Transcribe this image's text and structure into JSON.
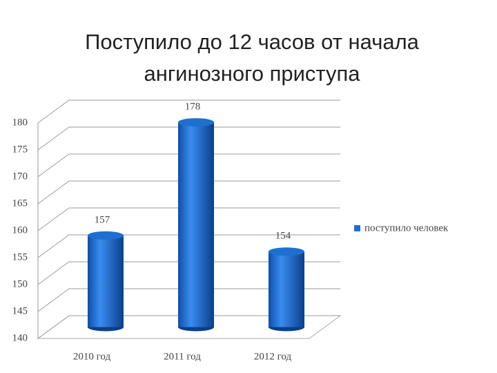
{
  "chart_data": {
    "type": "bar",
    "title": "Поступило до 12 часов от начала ангинозного приступа",
    "categories": [
      "2010 год",
      "2011 год",
      "2012 год"
    ],
    "series": [
      {
        "name": "поступило человек",
        "color": "#1f6fd0",
        "values": [
          157,
          178,
          154
        ]
      }
    ],
    "ylim": [
      140,
      180
    ],
    "yticks": [
      140,
      145,
      150,
      155,
      160,
      165,
      170,
      175,
      180
    ],
    "grid": true,
    "legend": "right"
  }
}
